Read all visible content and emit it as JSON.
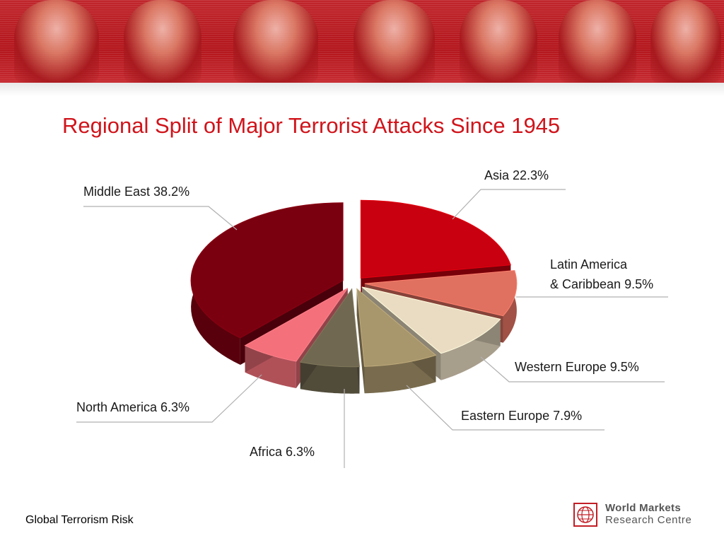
{
  "slide": {
    "title": "Regional Split of Major Terrorist Attacks Since 1945",
    "footer": "Global Terrorism Risk"
  },
  "logo": {
    "name": "World Markets",
    "sub": "Research Centre",
    "color": "#c21e25"
  },
  "banner": {
    "color": "#b3161c"
  },
  "chart_data": {
    "type": "pie",
    "title": "Regional Split of Major Terrorist Attacks Since 1945",
    "unit": "%",
    "legend": "none",
    "slices": [
      {
        "label": "Asia 22.3%",
        "name": "Asia",
        "value": 22.3,
        "color": "#c8000f"
      },
      {
        "label": "Latin America",
        "label2": "& Caribbean 9.5%",
        "name": "Latin America & Caribbean",
        "value": 9.5,
        "color": "#e07060"
      },
      {
        "label": "Western Europe 9.5%",
        "name": "Western Europe",
        "value": 9.5,
        "color": "#eadcc2"
      },
      {
        "label": "Eastern Europe 7.9%",
        "name": "Eastern Europe",
        "value": 7.9,
        "color": "#a8966c"
      },
      {
        "label": "Africa 6.3%",
        "name": "Africa",
        "value": 6.3,
        "color": "#706850"
      },
      {
        "label": "North America 6.3%",
        "name": "North America",
        "value": 6.3,
        "color": "#f4707a"
      },
      {
        "label": "Middle East 38.2%",
        "name": "Middle East",
        "value": 38.2,
        "color": "#7a0010"
      }
    ]
  }
}
